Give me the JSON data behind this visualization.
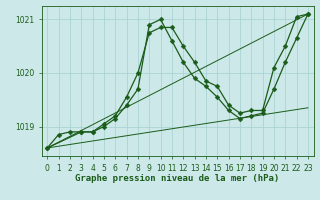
{
  "xlabel": "Graphe pression niveau de la mer (hPa)",
  "bg_color": "#cce8e8",
  "grid_color_v": "#aad4d4",
  "grid_color_h": "#aad4d4",
  "line_color": "#1a5c1a",
  "ylim": [
    1018.45,
    1021.25
  ],
  "xlim": [
    -0.5,
    23.5
  ],
  "yticks": [
    1019,
    1020,
    1021
  ],
  "xticks": [
    0,
    1,
    2,
    3,
    4,
    5,
    6,
    7,
    8,
    9,
    10,
    11,
    12,
    13,
    14,
    15,
    16,
    17,
    18,
    19,
    20,
    21,
    22,
    23
  ],
  "series": [
    {
      "x": [
        0,
        1,
        2,
        3,
        4,
        5,
        6,
        7,
        8,
        9,
        10,
        11,
        12,
        13,
        14,
        15,
        16,
        17,
        18,
        19,
        20,
        21,
        22,
        23
      ],
      "y": [
        1018.6,
        1018.85,
        1018.9,
        1018.9,
        1018.9,
        1019.05,
        1019.2,
        1019.55,
        1020.0,
        1020.75,
        1020.85,
        1020.85,
        1020.5,
        1020.2,
        1019.85,
        1019.75,
        1019.4,
        1019.25,
        1019.3,
        1019.3,
        1020.1,
        1020.5,
        1021.05,
        1021.1
      ],
      "marker": true
    },
    {
      "x": [
        0,
        3,
        4,
        5,
        6,
        7,
        8,
        9,
        10,
        11,
        12,
        13,
        14,
        15,
        16,
        17,
        18,
        19,
        20,
        21,
        22,
        23
      ],
      "y": [
        1018.6,
        1018.9,
        1018.9,
        1019.0,
        1019.15,
        1019.4,
        1019.7,
        1020.9,
        1021.0,
        1020.6,
        1020.2,
        1019.9,
        1019.75,
        1019.55,
        1019.3,
        1019.15,
        1019.2,
        1019.25,
        1019.7,
        1020.2,
        1020.65,
        1021.1
      ],
      "marker": true
    },
    {
      "x": [
        0,
        23
      ],
      "y": [
        1018.6,
        1021.1
      ],
      "marker": false
    },
    {
      "x": [
        0,
        23
      ],
      "y": [
        1018.6,
        1019.35
      ],
      "marker": false
    }
  ],
  "marker_style": "D",
  "markersize": 2.5,
  "linewidth": 0.9,
  "tick_fontsize": 5.5,
  "xlabel_fontsize": 6.5
}
